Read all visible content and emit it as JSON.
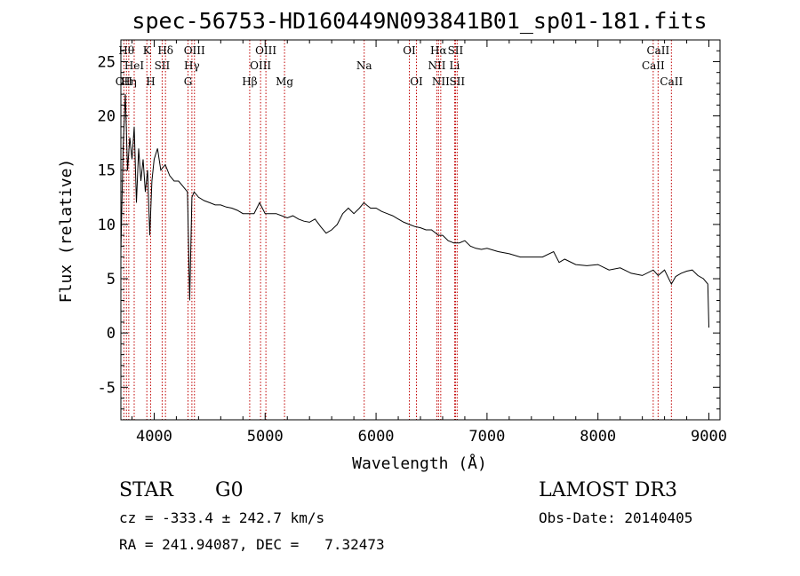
{
  "chart_data": {
    "type": "line",
    "title": "spec-56753-HD160449N093841B01_sp01-181.fits",
    "xlabel": "Wavelength (Å)",
    "ylabel": "Flux (relative)",
    "xlim": [
      3700,
      9100
    ],
    "ylim": [
      -8,
      27
    ],
    "xticks": [
      4000,
      5000,
      6000,
      7000,
      8000,
      9000
    ],
    "yticks": [
      -5,
      0,
      5,
      10,
      15,
      20,
      25
    ],
    "series": [
      {
        "x": [
          3700,
          3720,
          3740,
          3760,
          3780,
          3800,
          3820,
          3840,
          3860,
          3880,
          3900,
          3920,
          3940,
          3960,
          3980,
          4000,
          4030,
          4060,
          4100,
          4140,
          4180,
          4220,
          4260,
          4300,
          4320,
          4340,
          4360,
          4400,
          4450,
          4500,
          4550,
          4600,
          4650,
          4700,
          4750,
          4800,
          4860,
          4900,
          4950,
          5000,
          5050,
          5100,
          5150,
          5200,
          5250,
          5300,
          5350,
          5400,
          5450,
          5500,
          5550,
          5600,
          5650,
          5700,
          5750,
          5800,
          5850,
          5890,
          5950,
          6000,
          6050,
          6100,
          6150,
          6200,
          6250,
          6300,
          6350,
          6400,
          6450,
          6500,
          6563,
          6600,
          6650,
          6700,
          6750,
          6800,
          6850,
          6900,
          6950,
          7000,
          7100,
          7200,
          7300,
          7400,
          7500,
          7600,
          7650,
          7700,
          7800,
          7900,
          8000,
          8100,
          8200,
          8300,
          8400,
          8498,
          8542,
          8600,
          8662,
          8700,
          8750,
          8800,
          8850,
          8900,
          8950,
          8990,
          9000
        ],
        "y": [
          7.5,
          17.0,
          22.0,
          15.0,
          18.0,
          16.0,
          19.0,
          12.0,
          17.0,
          14.0,
          16.0,
          13.0,
          15.0,
          9.0,
          14.0,
          16.0,
          17.0,
          15.0,
          15.5,
          14.5,
          14.0,
          14.0,
          13.5,
          13.0,
          3.0,
          12.5,
          13.0,
          12.5,
          12.2,
          12.0,
          11.8,
          11.8,
          11.6,
          11.5,
          11.3,
          11.0,
          11.0,
          11.0,
          12.0,
          11.0,
          11.0,
          11.0,
          10.8,
          10.6,
          10.8,
          10.5,
          10.3,
          10.2,
          10.5,
          9.8,
          9.2,
          9.5,
          10.0,
          11.0,
          11.5,
          11.0,
          11.5,
          12.0,
          11.5,
          11.5,
          11.2,
          11.0,
          10.8,
          10.5,
          10.2,
          10.0,
          9.8,
          9.7,
          9.5,
          9.5,
          9.0,
          9.0,
          8.5,
          8.3,
          8.3,
          8.5,
          8.0,
          7.8,
          7.7,
          7.8,
          7.5,
          7.3,
          7.0,
          7.0,
          7.0,
          7.5,
          6.5,
          6.8,
          6.3,
          6.2,
          6.3,
          5.8,
          6.0,
          5.5,
          5.3,
          5.8,
          5.3,
          5.8,
          4.5,
          5.2,
          5.5,
          5.7,
          5.8,
          5.3,
          5.0,
          4.5,
          0.5
        ]
      }
    ],
    "line_markers": [
      {
        "label": "OII",
        "wave": 3727,
        "row": 2
      },
      {
        "label": "Hθ",
        "wave": 3750,
        "row": 0
      },
      {
        "label": "Hη",
        "wave": 3771,
        "row": 2
      },
      {
        "label": "HeI",
        "wave": 3820,
        "row": 1
      },
      {
        "label": "K",
        "wave": 3934,
        "row": 0
      },
      {
        "label": "H",
        "wave": 3968,
        "row": 2
      },
      {
        "label": "Hδ",
        "wave": 4102,
        "row": 0
      },
      {
        "label": "SII",
        "wave": 4072,
        "row": 1
      },
      {
        "label": "OIII",
        "wave": 4363,
        "row": 0
      },
      {
        "label": "Hγ",
        "wave": 4340,
        "row": 1
      },
      {
        "label": "G",
        "wave": 4305,
        "row": 2
      },
      {
        "label": "Hβ",
        "wave": 4861,
        "row": 2
      },
      {
        "label": "OIII",
        "wave": 5007,
        "row": 0
      },
      {
        "label": "OIII",
        "wave": 4959,
        "row": 1
      },
      {
        "label": "Mg",
        "wave": 5175,
        "row": 2
      },
      {
        "label": "Na",
        "wave": 5893,
        "row": 1
      },
      {
        "label": "OI",
        "wave": 6300,
        "row": 0
      },
      {
        "label": "OI",
        "wave": 6364,
        "row": 2
      },
      {
        "label": "Hα",
        "wave": 6563,
        "row": 0
      },
      {
        "label": "NII",
        "wave": 6548,
        "row": 1
      },
      {
        "label": "NII",
        "wave": 6583,
        "row": 2
      },
      {
        "label": "SII",
        "wave": 6716,
        "row": 0
      },
      {
        "label": "Li",
        "wave": 6708,
        "row": 1
      },
      {
        "label": "SII",
        "wave": 6731,
        "row": 2
      },
      {
        "label": "CaII",
        "wave": 8498,
        "row": 1
      },
      {
        "label": "CaII",
        "wave": 8542,
        "row": 0
      },
      {
        "label": "CaII",
        "wave": 8662,
        "row": 2
      }
    ]
  },
  "info": {
    "class_label": "STAR",
    "subclass_label": "G0",
    "survey_label": "LAMOST DR3",
    "redshift_text": "cz = -333.4 ± 242.7 km/s",
    "obsdate_text": "Obs-Date: 20140405",
    "coords_text": "RA = 241.94087, DEC =   7.32473"
  }
}
